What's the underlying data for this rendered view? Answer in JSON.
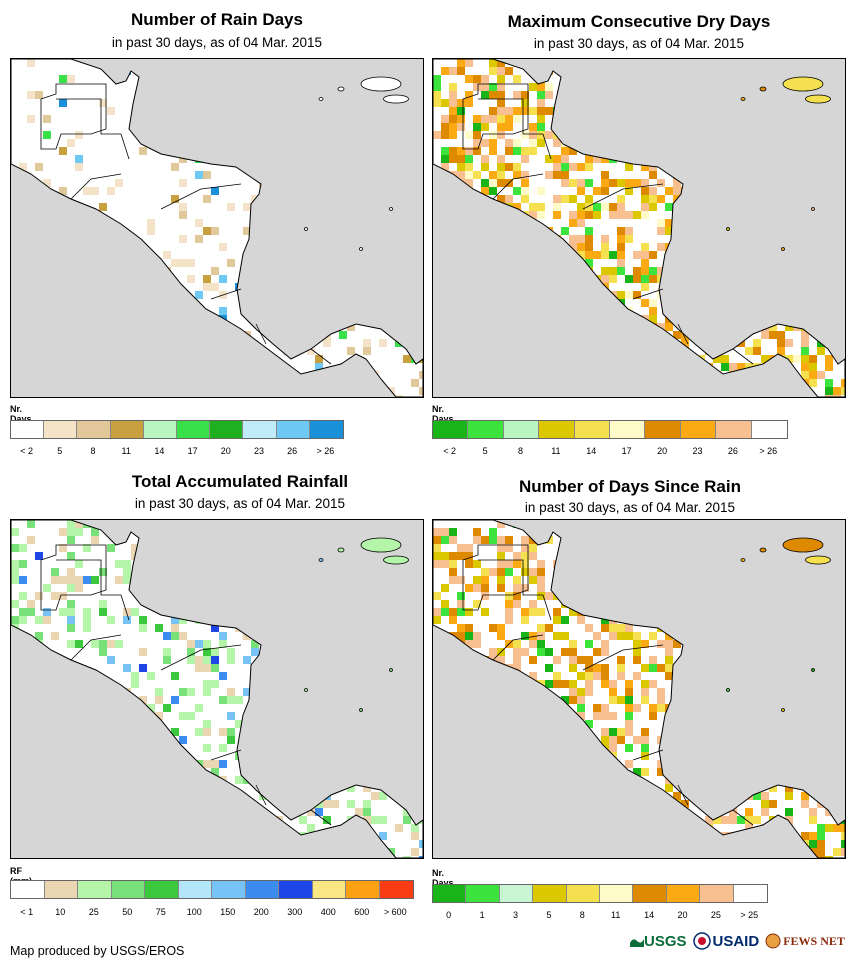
{
  "panels": [
    {
      "title": "Number of Rain Days",
      "subtitle": "in past 30 days, as of 04 Mar. 2015",
      "legend": {
        "title": "Nr. Days",
        "colors": [
          "#ffffff",
          "#f5e3c8",
          "#e2c79a",
          "#c8a040",
          "#b8f5c0",
          "#39e04a",
          "#1eb01e",
          "#c0ecfa",
          "#6ecaf5",
          "#1a90d8"
        ],
        "labels": [
          "< 2",
          "5",
          "8",
          "11",
          "14",
          "17",
          "20",
          "23",
          "26",
          "> 26"
        ]
      }
    },
    {
      "title": "Maximum Consecutive Dry Days",
      "subtitle": "in past 30 days, as of 04 Mar. 2015",
      "legend": {
        "title": "Nr. Days",
        "colors": [
          "#18b418",
          "#3ce33c",
          "#b8f5c0",
          "#dcc800",
          "#f5e050",
          "#fffbc8",
          "#de8a00",
          "#fbaa14",
          "#f8c090",
          "#ffffff"
        ],
        "labels": [
          "< 2",
          "5",
          "8",
          "11",
          "14",
          "17",
          "20",
          "23",
          "26",
          "> 26"
        ]
      }
    },
    {
      "title": "Total Accumulated Rainfall",
      "subtitle": "in past 30 days, as of 04 Mar. 2015",
      "legend": {
        "title": "RF (mm)",
        "colors": [
          "#ffffff",
          "#ebd6b4",
          "#b4f5aa",
          "#7ae07a",
          "#3cc83c",
          "#b4e6fa",
          "#78c3f5",
          "#3c8cf0",
          "#1e46e6",
          "#fae682",
          "#fca014",
          "#fa3c14"
        ],
        "labels": [
          "< 1",
          "10",
          "25",
          "50",
          "75",
          "100",
          "150",
          "200",
          "300",
          "400",
          "600",
          "> 600"
        ]
      }
    },
    {
      "title": "Number of Days Since Rain",
      "subtitle": "in past 30 days, as of 04 Mar. 2015",
      "legend": {
        "title": "Nr. Days",
        "colors": [
          "#18b418",
          "#3ce33c",
          "#c8f5d2",
          "#dcc800",
          "#f5e050",
          "#fffbc8",
          "#de8a00",
          "#fbaa14",
          "#f8c090",
          "#ffffff"
        ],
        "labels": [
          "0",
          "1",
          "3",
          "5",
          "8",
          "11",
          "14",
          "20",
          "25",
          "> 25"
        ]
      }
    }
  ],
  "credit": "Map produced by USGS/EROS",
  "logos": {
    "usgs": "USGS",
    "usaid": "USAID",
    "fewsnet": "FEWS NET"
  }
}
